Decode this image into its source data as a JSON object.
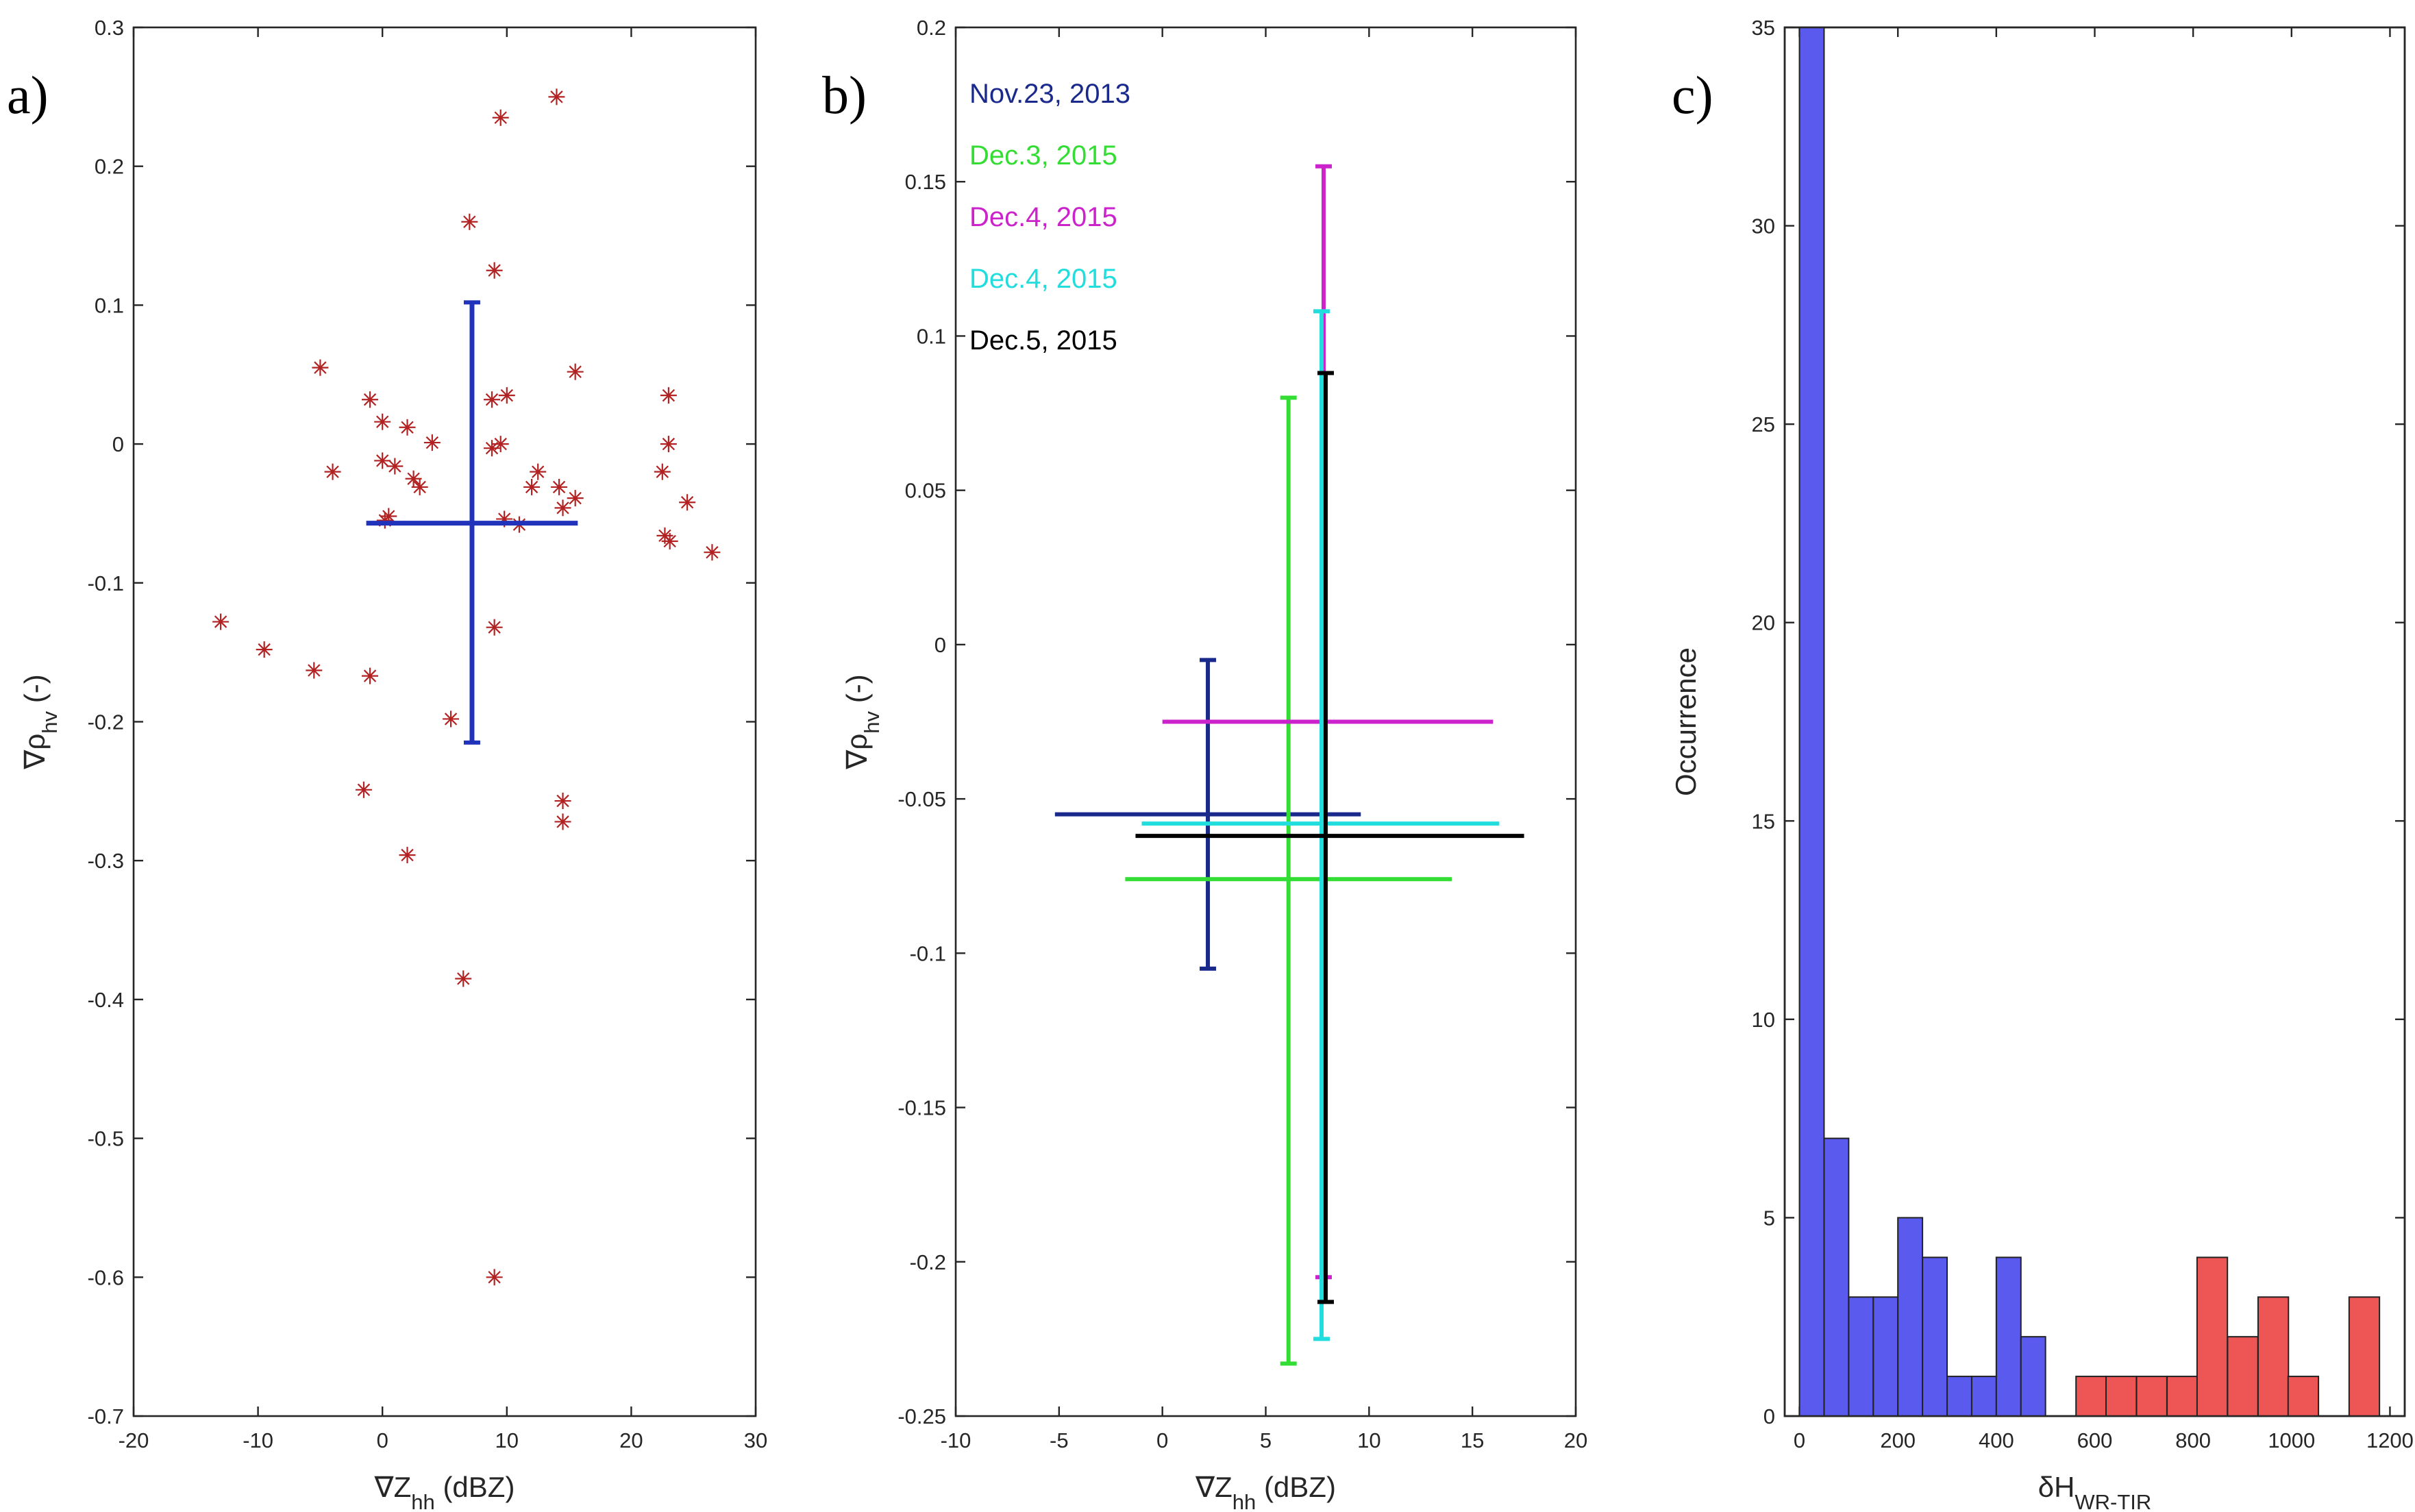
{
  "chart_data": [
    {
      "panel": "a)",
      "type": "scatter",
      "xlabel_main": "∇Z",
      "xlabel_sub": "hh",
      "xlabel_unit": " (dBZ)",
      "ylabel_main": "∇ρ",
      "ylabel_sub": "hv",
      "ylabel_unit": " (-)",
      "xlim": [
        -20,
        30
      ],
      "ylim": [
        -0.7,
        0.3
      ],
      "xticks": [
        -20,
        -10,
        0,
        10,
        20,
        30
      ],
      "yticks": [
        -0.7,
        -0.6,
        -0.5,
        -0.4,
        -0.3,
        -0.2,
        -0.1,
        0,
        0.1,
        0.2,
        0.3
      ],
      "marker_color": "#b22222",
      "errorbar_color": "#2233bb",
      "points": [
        [
          14,
          0.25
        ],
        [
          9.5,
          0.235
        ],
        [
          7,
          0.16
        ],
        [
          9,
          0.125
        ],
        [
          -5,
          0.055
        ],
        [
          15.5,
          0.052
        ],
        [
          23,
          0.035
        ],
        [
          10,
          0.035
        ],
        [
          -1,
          0.032
        ],
        [
          8.8,
          0.032
        ],
        [
          0,
          0.016
        ],
        [
          2,
          0.012
        ],
        [
          4,
          0.001
        ],
        [
          9.5,
          0
        ],
        [
          8.8,
          -0.003
        ],
        [
          23,
          -0.0
        ],
        [
          0,
          -0.012
        ],
        [
          1,
          -0.016
        ],
        [
          -4,
          -0.02
        ],
        [
          12.5,
          -0.02
        ],
        [
          22.5,
          -0.02
        ],
        [
          2.5,
          -0.025
        ],
        [
          3,
          -0.031
        ],
        [
          12,
          -0.031
        ],
        [
          14.2,
          -0.031
        ],
        [
          15.5,
          -0.039
        ],
        [
          24.5,
          -0.042
        ],
        [
          14.5,
          -0.046
        ],
        [
          0.5,
          -0.052
        ],
        [
          0.2,
          -0.055
        ],
        [
          9.8,
          -0.054
        ],
        [
          11,
          -0.058
        ],
        [
          22.7,
          -0.066
        ],
        [
          23.1,
          -0.07
        ],
        [
          26.5,
          -0.078
        ],
        [
          -13,
          -0.128
        ],
        [
          -9.5,
          -0.148
        ],
        [
          9,
          -0.132
        ],
        [
          -5.5,
          -0.163
        ],
        [
          -1,
          -0.167
        ],
        [
          5.5,
          -0.198
        ],
        [
          -1.5,
          -0.249
        ],
        [
          14.5,
          -0.257
        ],
        [
          14.5,
          -0.272
        ],
        [
          2,
          -0.296
        ],
        [
          6.5,
          -0.385
        ],
        [
          9,
          -0.6
        ]
      ],
      "errorbar": {
        "x": 7.2,
        "y": -0.057,
        "xmin": -1.3,
        "xmax": 15.7,
        "ymin": -0.215,
        "ymax": 0.102
      }
    },
    {
      "panel": "b)",
      "type": "errorbar",
      "xlabel_main": "∇Z",
      "xlabel_sub": "hh",
      "xlabel_unit": " (dBZ)",
      "ylabel_main": "∇ρ",
      "ylabel_sub": "hv",
      "ylabel_unit": " (-)",
      "xlim": [
        -10,
        20
      ],
      "ylim": [
        -0.25,
        0.2
      ],
      "xticks": [
        -10,
        -5,
        0,
        5,
        10,
        15,
        20
      ],
      "yticks": [
        -0.25,
        -0.2,
        -0.15,
        -0.1,
        -0.05,
        0,
        0.05,
        0.1,
        0.15,
        0.2
      ],
      "series": [
        {
          "name": "Nov.23, 2013",
          "color": "#1a2a8c",
          "x": 2.2,
          "y": -0.055,
          "xmin": -5.2,
          "xmax": 9.6,
          "ymin": -0.105,
          "ymax": -0.005
        },
        {
          "name": "Dec.3, 2015",
          "color": "#33dd33",
          "x": 6.1,
          "y": -0.076,
          "xmin": -1.8,
          "xmax": 14,
          "ymin": -0.233,
          "ymax": 0.08
        },
        {
          "name": "Dec.4, 2015",
          "color": "#cc22cc",
          "x": 7.8,
          "y": -0.025,
          "xmin": 0,
          "xmax": 16,
          "ymin": -0.205,
          "ymax": 0.155
        },
        {
          "name": "Dec.4, 2015",
          "color": "#22dddd",
          "x": 7.7,
          "y": -0.058,
          "xmin": -1,
          "xmax": 16.3,
          "ymin": -0.225,
          "ymax": 0.108
        },
        {
          "name": "Dec.5, 2015",
          "color": "#000000",
          "x": 7.9,
          "y": -0.062,
          "xmin": -1.3,
          "xmax": 17.5,
          "ymin": -0.213,
          "ymax": 0.088
        }
      ]
    },
    {
      "panel": "c)",
      "type": "histogram",
      "xlabel_main": "δH",
      "xlabel_sub": "WR-TIR",
      "ylabel": "Occurrence",
      "xlim": [
        -30,
        1230
      ],
      "ylim": [
        0,
        35
      ],
      "xticks": [
        0,
        200,
        400,
        600,
        800,
        1000,
        1200
      ],
      "yticks": [
        0,
        5,
        10,
        15,
        20,
        25,
        30,
        35
      ],
      "bin_width": 50,
      "blue_color": "#5a5aee",
      "red_color": "#ee5555",
      "blue_bins": [
        {
          "start": 0,
          "count": 35
        },
        {
          "start": 50,
          "count": 7
        },
        {
          "start": 100,
          "count": 3
        },
        {
          "start": 150,
          "count": 3
        },
        {
          "start": 200,
          "count": 5
        },
        {
          "start": 250,
          "count": 4
        },
        {
          "start": 300,
          "count": 1
        },
        {
          "start": 350,
          "count": 1
        },
        {
          "start": 400,
          "count": 4
        },
        {
          "start": 450,
          "count": 2
        }
      ],
      "red_bins": [
        {
          "start": 562,
          "count": 1
        },
        {
          "start": 623,
          "count": 1
        },
        {
          "start": 685,
          "count": 1
        },
        {
          "start": 747,
          "count": 1
        },
        {
          "start": 808,
          "count": 4
        },
        {
          "start": 870,
          "count": 2
        },
        {
          "start": 932,
          "count": 3
        },
        {
          "start": 993,
          "count": 1
        },
        {
          "start": 1055,
          "count": 0
        },
        {
          "start": 1117,
          "count": 3
        }
      ]
    }
  ]
}
